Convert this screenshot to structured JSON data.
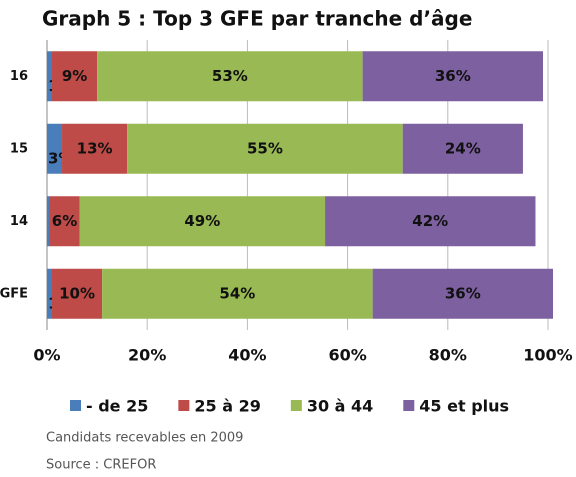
{
  "chart_data": {
    "type": "stacked-barh",
    "title": "Graph 5 : Top 3 GFE par tranche d’âge",
    "categories": [
      "16",
      "15",
      "14",
      "GFE"
    ],
    "series": [
      {
        "name": "- de 25",
        "color": "#4a7ebb",
        "values": [
          1,
          3,
          0.5,
          1
        ],
        "value_labels": [
          "1%",
          "3%",
          null,
          "1%"
        ]
      },
      {
        "name": "25 à 29",
        "color": "#be4b48",
        "values": [
          9,
          13,
          6,
          10
        ],
        "value_labels": [
          "9%",
          "13%",
          "6%",
          "10%"
        ]
      },
      {
        "name": "30 à 44",
        "color": "#98b954",
        "values": [
          53,
          55,
          49,
          54
        ],
        "value_labels": [
          "53%",
          "55%",
          "49%",
          "54%"
        ]
      },
      {
        "name": "45 et plus",
        "color": "#7d60a0",
        "values": [
          36,
          24,
          42,
          36
        ],
        "value_labels": [
          "36%",
          "24%",
          "42%",
          "36%"
        ]
      }
    ],
    "xlim": [
      0,
      100
    ],
    "xticks": [
      {
        "value": 0,
        "label": "0%"
      },
      {
        "value": 20,
        "label": "20%"
      },
      {
        "value": 40,
        "label": "40%"
      },
      {
        "value": 60,
        "label": "60%"
      },
      {
        "value": 80,
        "label": "80%"
      },
      {
        "value": 100,
        "label": "100%"
      }
    ],
    "grid": true,
    "legend": "bottom",
    "notes": [
      "Candidats recevables en 2009",
      "Source : CREFOR"
    ]
  }
}
